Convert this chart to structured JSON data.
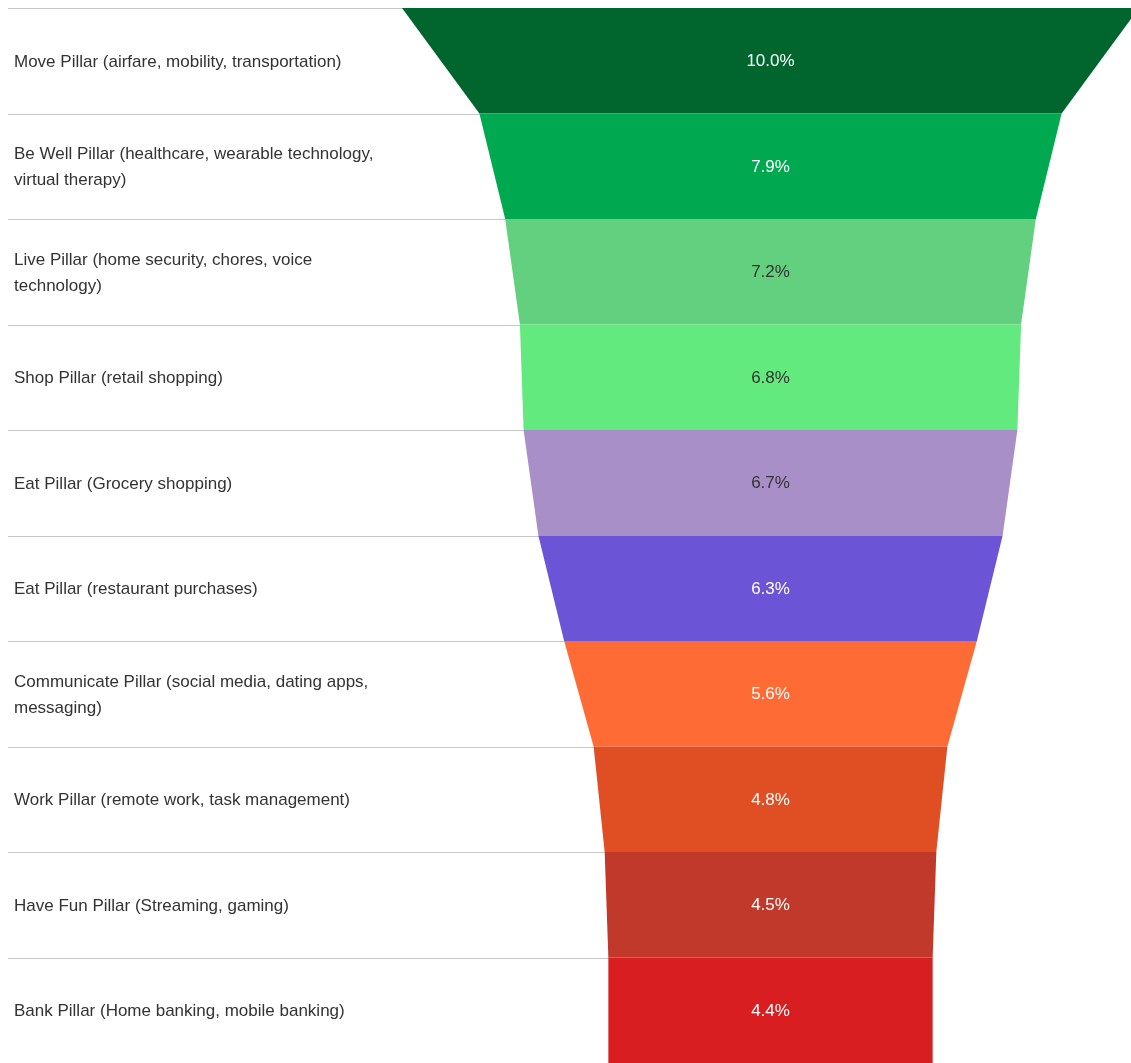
{
  "chart_data": {
    "type": "other",
    "categories": [
      "Move Pillar (airfare, mobility, transportation)",
      "Be Well Pillar (healthcare, wearable technology, virtual therapy)",
      "Live Pillar (home security, chores, voice technology)",
      "Shop Pillar (retail shopping)",
      "Eat Pillar (Grocery shopping)",
      "Eat Pillar (restaurant purchases)",
      "Communicate Pillar (social media, dating apps, messaging)",
      "Work Pillar (remote work, task management)",
      "Have Fun Pillar (Streaming, gaming)",
      "Bank Pillar (Home banking, mobile banking)"
    ],
    "values": [
      10.0,
      7.9,
      7.2,
      6.8,
      6.7,
      6.3,
      5.6,
      4.8,
      4.5,
      4.4
    ],
    "value_labels": [
      "10.0%",
      "7.9%",
      "7.2%",
      "6.8%",
      "6.7%",
      "6.3%",
      "5.6%",
      "4.8%",
      "4.5%",
      "4.4%"
    ],
    "colors": [
      "#00662e",
      "#00a84f",
      "#62d07f",
      "#62ea7e",
      "#a98fc7",
      "#6c54d6",
      "#ff6b35",
      "#e04e24",
      "#c0392b",
      "#d81e20"
    ]
  }
}
